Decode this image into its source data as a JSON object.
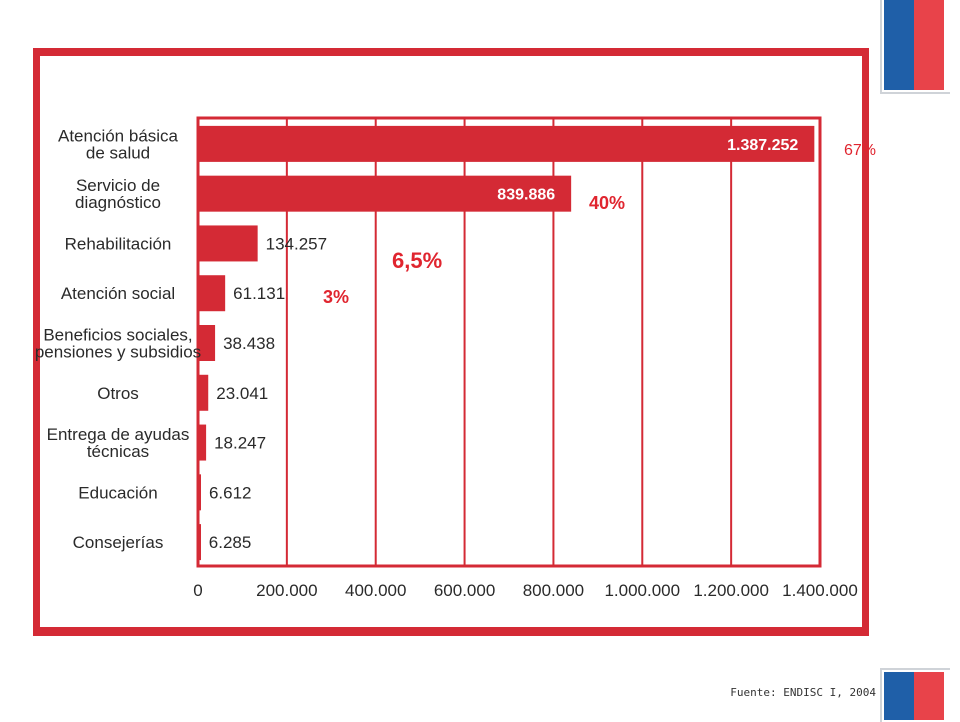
{
  "chart_data": {
    "type": "bar",
    "orientation": "horizontal",
    "categories": [
      [
        "Atención básica",
        "de salud"
      ],
      [
        "Servicio de",
        "diagnóstico"
      ],
      [
        "Rehabilitación"
      ],
      [
        "Atención social"
      ],
      [
        "Beneficios sociales,",
        "pensiones y subsidios"
      ],
      [
        "Otros"
      ],
      [
        "Entrega de ayudas",
        "técnicas"
      ],
      [
        "Educación"
      ],
      [
        "Consejerías"
      ]
    ],
    "values": [
      1387252,
      839886,
      134257,
      61131,
      38438,
      23041,
      18247,
      6612,
      6285
    ],
    "value_labels": [
      "1.387.252",
      "839.886",
      "134.257",
      "61.131",
      "38.438",
      "23.041",
      "18.247",
      "6.612",
      "6.285"
    ],
    "x_ticks": [
      0,
      200000,
      400000,
      600000,
      800000,
      1000000,
      1200000,
      1400000
    ],
    "x_tick_labels": [
      "0",
      "200.000",
      "400.000",
      "600.000",
      "800.000",
      "1.000.000",
      "1.200.000",
      "1.400.000"
    ],
    "xlim": [
      0,
      1400000
    ],
    "grid": true,
    "bar_color": "#d42a35",
    "percent_annotations": [
      "67%",
      "40%",
      "6,5%",
      "3%"
    ]
  },
  "source": "Fuente: ENDISC I, 2004",
  "colors": {
    "accent": "#d42a35",
    "flag_blue": "#1f5fa8",
    "flag_red": "#e8434a"
  }
}
